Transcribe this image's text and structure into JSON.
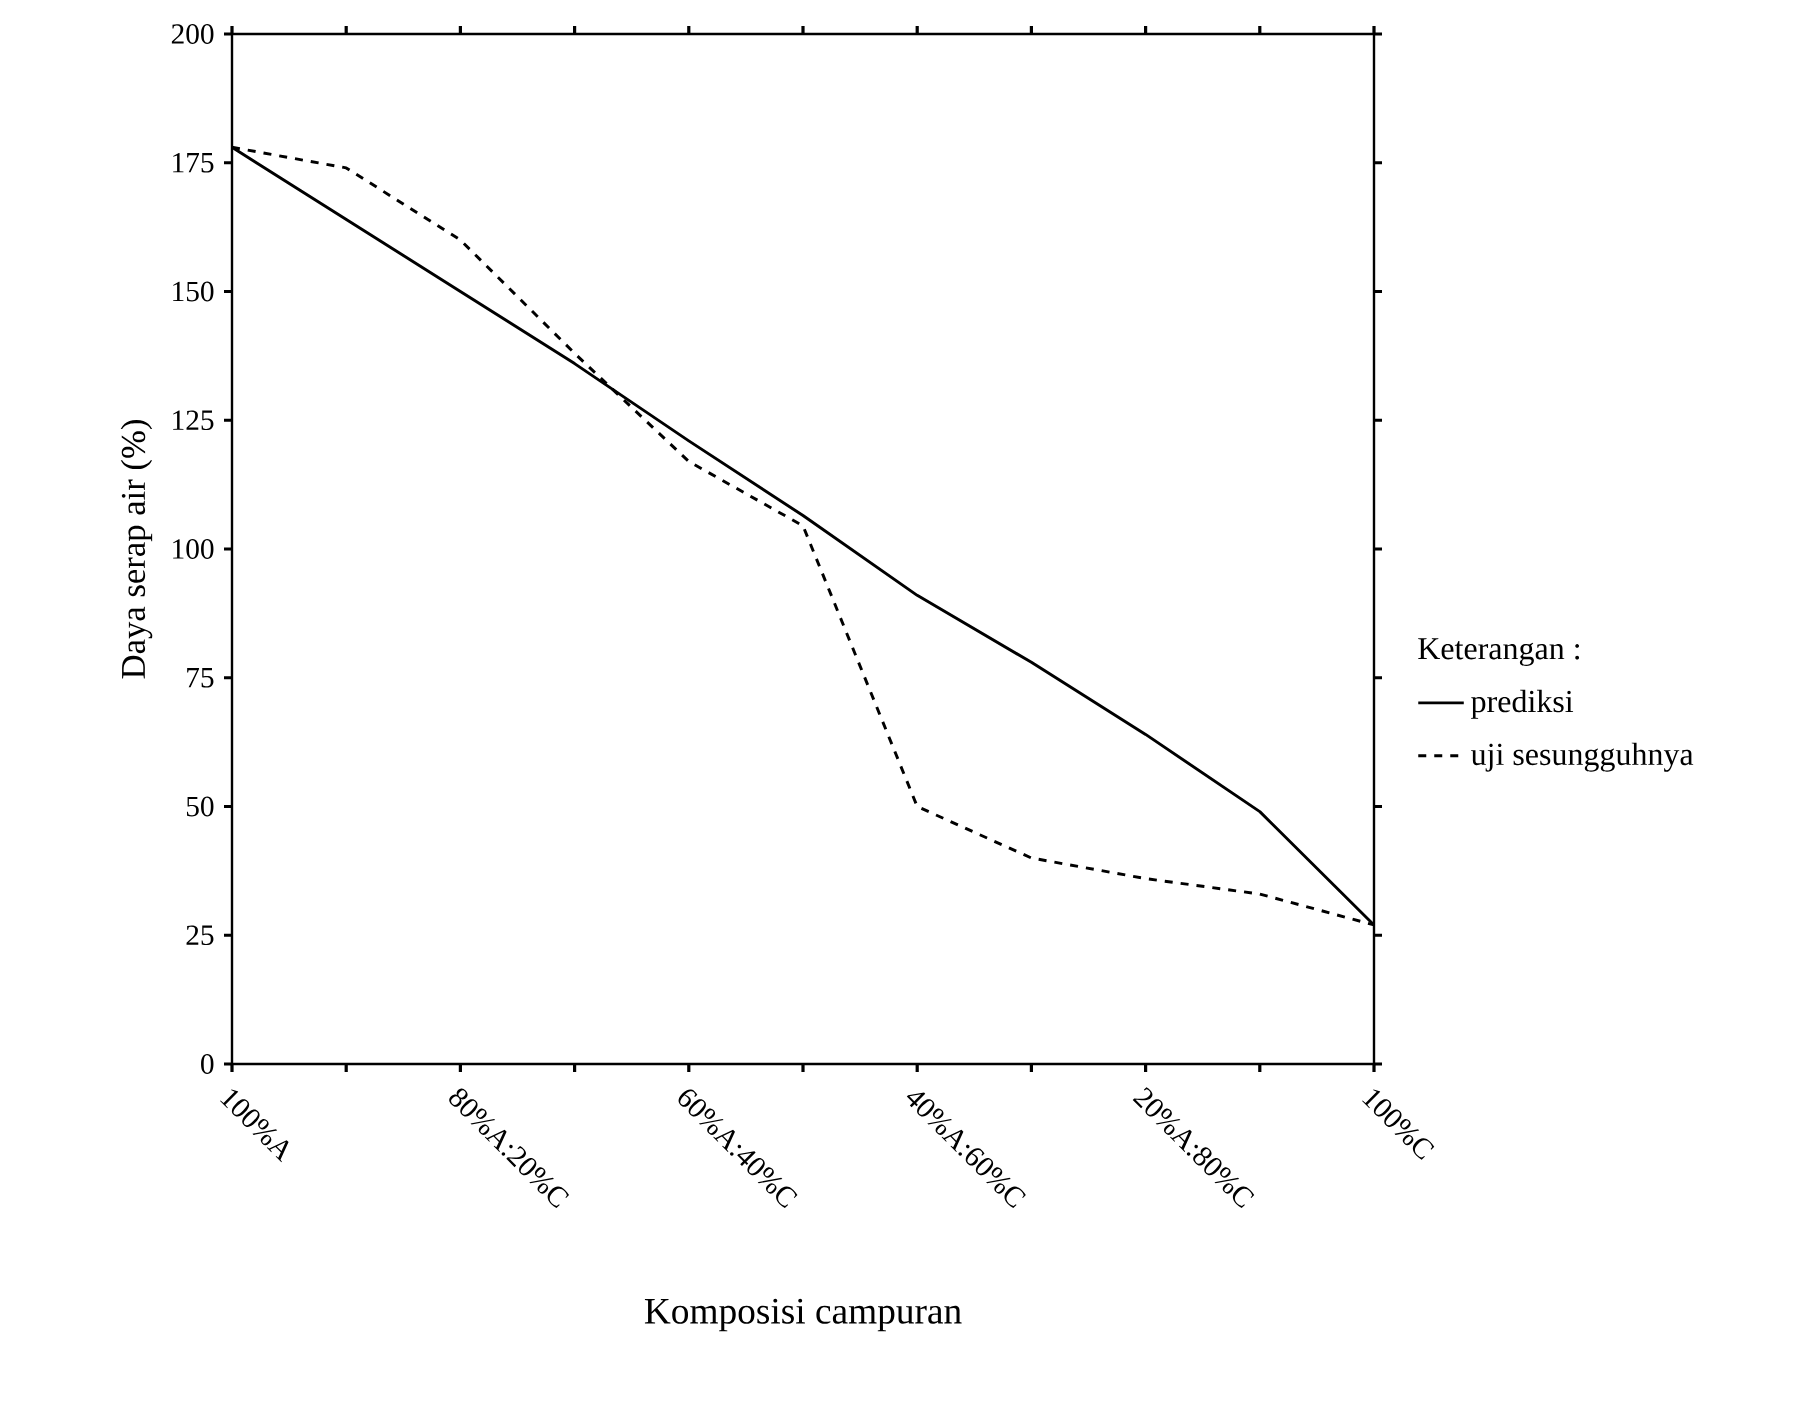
{
  "chart_data": {
    "type": "line",
    "xlabel": "Komposisi campuran",
    "ylabel": "Daya serap air (%)",
    "legend_title": "Keterangan :",
    "legend": "right",
    "grid": false,
    "marker": "none",
    "categories": [
      "100%A",
      null,
      "80%A:20%C",
      null,
      "60%A:40%C",
      null,
      "40%A:60%C",
      null,
      "20%A:80%C",
      null,
      "100%C"
    ],
    "ylim": [
      0,
      200
    ],
    "yticks": [
      0,
      25,
      50,
      75,
      100,
      125,
      150,
      175,
      200
    ],
    "series": [
      {
        "name": "prediksi",
        "color": "#000000",
        "line_style": "solid",
        "values": [
          178,
          164,
          150,
          136,
          121,
          106.5,
          91,
          78,
          64,
          49,
          27
        ]
      },
      {
        "name": "uji sesungguhnya",
        "color": "#000000",
        "line_style": "dashed",
        "values": [
          178,
          174,
          160,
          138,
          117,
          104.5,
          50,
          40,
          36,
          33,
          27
        ]
      }
    ]
  }
}
